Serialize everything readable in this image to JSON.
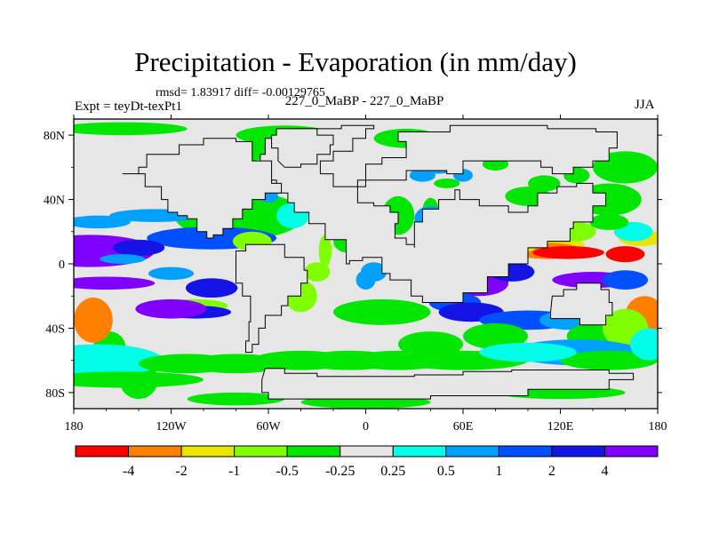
{
  "chart_data": {
    "type": "heatmap",
    "title": "Precipitation - Evaporation (in mm/day)",
    "subtitle": "rmsd= 1.83917 diff= -0.00129765",
    "left_label": "Expt = teyDt-texPt1",
    "center_label": "227_0_MaBP - 227_0_MaBP",
    "right_label": "JJA",
    "x_ticks": [
      "180",
      "120W",
      "60W",
      "0",
      "60E",
      "120E",
      "180"
    ],
    "x_tick_values": [
      -180,
      -120,
      -60,
      0,
      60,
      120,
      180
    ],
    "y_ticks": [
      "80N",
      "40N",
      "0",
      "40S",
      "80S"
    ],
    "y_tick_values": [
      80,
      40,
      0,
      -40,
      -80
    ],
    "xlim": [
      -180,
      180
    ],
    "ylim": [
      -90,
      90
    ],
    "colorbar": {
      "colors": [
        "#ff0000",
        "#ff8000",
        "#e6e600",
        "#80ff00",
        "#00e600",
        "#e6e6e6",
        "#00ffe6",
        "#00a0ff",
        "#0050ff",
        "#1414e6",
        "#8000ff"
      ],
      "labels": [
        "-4",
        "-2",
        "-1",
        "-0.5",
        "-0.25",
        "0.25",
        "0.5",
        "1",
        "2",
        "4"
      ],
      "level_values": [
        -4,
        -2,
        -1,
        -0.5,
        -0.25,
        0.25,
        0.5,
        1,
        2,
        4
      ]
    },
    "continents": [
      [
        [
          -12,
          0
        ],
        [
          -12,
          15
        ],
        [
          -25,
          25
        ],
        [
          -35,
          32
        ],
        [
          -44,
          38
        ],
        [
          -48,
          44
        ],
        [
          -55,
          52
        ],
        [
          -64,
          58
        ],
        [
          -65,
          68
        ],
        [
          -62,
          78
        ],
        [
          -45,
          84
        ],
        [
          -15,
          86
        ],
        [
          5,
          84
        ],
        [
          0,
          78
        ],
        [
          -8,
          70
        ],
        [
          -20,
          64
        ],
        [
          -28,
          56
        ],
        [
          -20,
          48
        ],
        [
          -5,
          52
        ],
        [
          25,
          58
        ],
        [
          50,
          56
        ],
        [
          60,
          64
        ],
        [
          90,
          64
        ],
        [
          108,
          60
        ],
        [
          115,
          56
        ],
        [
          128,
          60
        ],
        [
          140,
          64
        ],
        [
          150,
          72
        ],
        [
          155,
          82
        ],
        [
          142,
          84
        ],
        [
          112,
          86
        ],
        [
          80,
          86
        ],
        [
          52,
          82
        ],
        [
          20,
          76
        ],
        [
          25,
          66
        ],
        [
          10,
          62
        ],
        [
          0,
          48
        ],
        [
          -5,
          38
        ],
        [
          5,
          36
        ],
        [
          15,
          32
        ],
        [
          20,
          25
        ],
        [
          18,
          16
        ],
        [
          25,
          12
        ],
        [
          30,
          10
        ],
        [
          30,
          26
        ],
        [
          35,
          34
        ],
        [
          45,
          40
        ],
        [
          55,
          46
        ],
        [
          58,
          40
        ],
        [
          70,
          36
        ],
        [
          82,
          36
        ],
        [
          88,
          32
        ],
        [
          100,
          36
        ],
        [
          106,
          44
        ],
        [
          118,
          48
        ],
        [
          130,
          50
        ],
        [
          140,
          44
        ],
        [
          148,
          44
        ],
        [
          148,
          36
        ],
        [
          140,
          26
        ],
        [
          128,
          22
        ],
        [
          126,
          14
        ],
        [
          112,
          10
        ],
        [
          100,
          0
        ],
        [
          88,
          -8
        ],
        [
          75,
          -18
        ],
        [
          60,
          -24
        ],
        [
          45,
          -24
        ],
        [
          35,
          -20
        ],
        [
          28,
          -10
        ],
        [
          15,
          -6
        ],
        [
          10,
          4
        ],
        [
          -2,
          2
        ],
        [
          -10,
          0
        ]
      ],
      [
        [
          -150,
          56
        ],
        [
          -140,
          60
        ],
        [
          -135,
          68
        ],
        [
          -115,
          74
        ],
        [
          -100,
          78
        ],
        [
          -80,
          76
        ],
        [
          -70,
          64
        ],
        [
          -58,
          50
        ],
        [
          -52,
          44
        ],
        [
          -62,
          40
        ],
        [
          -70,
          34
        ],
        [
          -76,
          28
        ],
        [
          -82,
          22
        ],
        [
          -88,
          18
        ],
        [
          -94,
          16
        ],
        [
          -98,
          20
        ],
        [
          -104,
          28
        ],
        [
          -110,
          30
        ],
        [
          -116,
          32
        ],
        [
          -122,
          40
        ],
        [
          -126,
          48
        ],
        [
          -136,
          56
        ]
      ],
      [
        [
          -80,
          8
        ],
        [
          -74,
          12
        ],
        [
          -62,
          12
        ],
        [
          -50,
          4
        ],
        [
          -38,
          -4
        ],
        [
          -36,
          -12
        ],
        [
          -40,
          -20
        ],
        [
          -48,
          -26
        ],
        [
          -52,
          -32
        ],
        [
          -62,
          -40
        ],
        [
          -66,
          -50
        ],
        [
          -70,
          -55
        ],
        [
          -74,
          -48
        ],
        [
          -72,
          -36
        ],
        [
          -71,
          -20
        ],
        [
          -76,
          -12
        ],
        [
          -80,
          -4
        ]
      ],
      [
        [
          115,
          -20
        ],
        [
          122,
          -16
        ],
        [
          130,
          -12
        ],
        [
          138,
          -12
        ],
        [
          145,
          -16
        ],
        [
          150,
          -24
        ],
        [
          152,
          -32
        ],
        [
          148,
          -38
        ],
        [
          140,
          -38
        ],
        [
          132,
          -34
        ],
        [
          120,
          -34
        ],
        [
          114,
          -30
        ]
      ],
      [
        [
          -62,
          -65
        ],
        [
          -50,
          -68
        ],
        [
          -30,
          -70
        ],
        [
          0,
          -70
        ],
        [
          30,
          -69
        ],
        [
          60,
          -67
        ],
        [
          90,
          -66
        ],
        [
          120,
          -66
        ],
        [
          150,
          -68
        ],
        [
          165,
          -72
        ],
        [
          150,
          -78
        ],
        [
          100,
          -82
        ],
        [
          40,
          -84
        ],
        [
          -20,
          -84
        ],
        [
          -60,
          -80
        ],
        [
          -64,
          -72
        ]
      ],
      [
        [
          -50,
          60
        ],
        [
          -40,
          62
        ],
        [
          -30,
          68
        ],
        [
          -22,
          74
        ],
        [
          -20,
          80
        ],
        [
          -30,
          84
        ],
        [
          -45,
          84
        ],
        [
          -55,
          80
        ],
        [
          -58,
          72
        ],
        [
          -54,
          64
        ]
      ]
    ],
    "anomalies": [
      [
        -158,
        -52,
        -180,
        -24,
        -30,
        10,
        -0.3
      ],
      [
        -140,
        -72,
        -180,
        -15,
        -25,
        12,
        -0.3
      ],
      [
        -125,
        -35,
        -175,
        -12,
        -35,
        10,
        -0.25
      ],
      [
        -50,
        -25,
        -180,
        -5,
        20,
        6,
        -0.25
      ],
      [
        0,
        -50,
        -180,
        0,
        50,
        10,
        -0.25
      ],
      [
        -78,
        30,
        -180,
        -8,
        40,
        15,
        -0.3
      ],
      [
        -80,
        50,
        0,
        0,
        0,
        0,
        -0.22
      ],
      [
        -95,
        16,
        -180,
        -12,
        40,
        7,
        1.8
      ],
      [
        -170,
        8,
        -180,
        -6,
        40,
        10,
        6
      ],
      [
        -140,
        10,
        -180,
        -11,
        16,
        5,
        2.6
      ],
      [
        -150,
        3,
        -180,
        -11,
        14,
        3,
        0.8
      ],
      [
        -165,
        26,
        -180,
        -14,
        20,
        4,
        0.6
      ],
      [
        -130,
        30,
        -180,
        -16,
        28,
        4,
        0.6
      ],
      [
        -120,
        -6,
        -180,
        -12,
        14,
        4,
        0.7
      ],
      [
        -105,
        -26,
        -180,
        -10,
        20,
        4,
        -0.8
      ],
      [
        -105,
        -30,
        -180,
        -10,
        22,
        4,
        2.3
      ],
      [
        -160,
        -12,
        -180,
        -18,
        30,
        4,
        6
      ],
      [
        -120,
        -28,
        -180,
        -12,
        22,
        6,
        5
      ],
      [
        -95,
        -15,
        -180,
        -14,
        16,
        6,
        2.5
      ],
      [
        -168,
        -35,
        -180,
        -22,
        12,
        14,
        -3.6
      ],
      [
        -165,
        -60,
        -180,
        -18,
        40,
        10,
        0.4
      ],
      [
        -150,
        -72,
        -180,
        -25,
        50,
        5,
        -0.4
      ],
      [
        -70,
        14,
        -180,
        -14,
        12,
        6,
        -0.6
      ],
      [
        -60,
        -2,
        -180,
        -12,
        10,
        8,
        0.6
      ],
      [
        -25,
        8,
        -180,
        -18,
        4,
        10,
        -0.6
      ],
      [
        -30,
        -5,
        -180,
        -16,
        8,
        6,
        -0.7
      ],
      [
        -15,
        12,
        -180,
        -14,
        5,
        3,
        -1.0
      ],
      [
        -40,
        -20,
        -180,
        -14,
        10,
        10,
        -0.8
      ],
      [
        10,
        -30,
        -180,
        -20,
        30,
        8,
        -0.4
      ],
      [
        -45,
        30,
        -180,
        -15,
        10,
        8,
        0.3
      ],
      [
        -25,
        35,
        -180,
        -10,
        8,
        6,
        0.4
      ],
      [
        -72,
        70,
        -180,
        -10,
        14,
        6,
        -0.3
      ],
      [
        -100,
        58,
        -180,
        -14,
        12,
        6,
        -0.3
      ],
      [
        -45,
        65,
        -180,
        -10,
        10,
        6,
        -0.3
      ],
      [
        -60,
        42,
        -180,
        -6,
        6,
        4,
        0.6
      ],
      [
        20,
        30,
        -180,
        -10,
        10,
        12,
        -0.5
      ],
      [
        -12,
        15,
        -180,
        -10,
        8,
        8,
        -0.4
      ],
      [
        0,
        -10,
        -180,
        -6,
        6,
        6,
        0.5
      ],
      [
        5,
        -5,
        -180,
        -6,
        8,
        6,
        0.5
      ],
      [
        10,
        20,
        -180,
        -4,
        6,
        4,
        -0.5
      ],
      [
        40,
        33,
        -180,
        -10,
        5,
        8,
        -0.35
      ],
      [
        35,
        5,
        -180,
        -4,
        14,
        6,
        -0.35
      ],
      [
        60,
        15,
        -180,
        -4,
        20,
        6,
        -0.3
      ],
      [
        -50,
        80,
        -180,
        -8,
        30,
        6,
        -0.35
      ],
      [
        25,
        78,
        -180,
        -8,
        20,
        6,
        -0.3
      ],
      [
        60,
        30,
        -180,
        -14,
        20,
        6,
        0.4
      ],
      [
        50,
        50,
        -180,
        -6,
        8,
        3,
        -0.3
      ],
      [
        35,
        55,
        -180,
        -8,
        8,
        4,
        0.6
      ],
      [
        45,
        60,
        -180,
        -12,
        10,
        4,
        0.8
      ],
      [
        60,
        55,
        -180,
        -10,
        6,
        4,
        0.5
      ],
      [
        80,
        62,
        -180,
        -10,
        8,
        4,
        -0.35
      ],
      [
        75,
        70,
        -180,
        -10,
        10,
        4,
        -0.3
      ],
      [
        110,
        73,
        -180,
        -12,
        8,
        5,
        0.4
      ],
      [
        110,
        78,
        -180,
        -10,
        20,
        4,
        -0.3
      ],
      [
        130,
        55,
        -180,
        -10,
        8,
        5,
        -0.3
      ],
      [
        110,
        50,
        -180,
        -10,
        10,
        5,
        -0.35
      ],
      [
        160,
        60,
        -180,
        -14,
        20,
        10,
        -0.3
      ],
      [
        150,
        40,
        -180,
        -14,
        20,
        10,
        -0.35
      ],
      [
        100,
        42,
        -180,
        -10,
        14,
        6,
        -0.35
      ],
      [
        55,
        32,
        -180,
        -14,
        10,
        6,
        3.5
      ],
      [
        78,
        26,
        -180,
        -12,
        10,
        6,
        6
      ],
      [
        100,
        26,
        -180,
        -12,
        14,
        5,
        2.2
      ],
      [
        40,
        28,
        -180,
        -12,
        10,
        8,
        0.7
      ],
      [
        120,
        30,
        -180,
        -12,
        12,
        6,
        -0.6
      ],
      [
        100,
        12,
        -180,
        -12,
        35,
        5,
        -1.2
      ],
      [
        112,
        8,
        -180,
        -16,
        22,
        5,
        -2.4
      ],
      [
        125,
        7,
        -180,
        -14,
        22,
        4,
        -4.2
      ],
      [
        160,
        6,
        -180,
        -16,
        12,
        5,
        -4.2
      ],
      [
        170,
        16,
        -180,
        -12,
        14,
        5,
        -1.3
      ],
      [
        165,
        20,
        -180,
        -10,
        12,
        6,
        0.4
      ],
      [
        130,
        20,
        -180,
        -10,
        12,
        6,
        -0.8
      ],
      [
        150,
        26,
        -180,
        -12,
        12,
        5,
        -0.5
      ],
      [
        80,
        10,
        -180,
        -12,
        25,
        4,
        -1.5
      ],
      [
        65,
        14,
        -180,
        -8,
        14,
        4,
        -0.6
      ],
      [
        140,
        -10,
        -180,
        -14,
        25,
        5,
        6
      ],
      [
        160,
        -10,
        -180,
        -16,
        14,
        6,
        1.5
      ],
      [
        70,
        -12,
        -180,
        -12,
        18,
        8,
        6
      ],
      [
        50,
        -18,
        -180,
        -14,
        12,
        10,
        3.5
      ],
      [
        55,
        -24,
        -180,
        -10,
        16,
        6,
        1.2
      ],
      [
        65,
        -30,
        -180,
        -8,
        20,
        6,
        2.2
      ],
      [
        100,
        -35,
        -180,
        -10,
        30,
        6,
        1.5
      ],
      [
        125,
        -35,
        -180,
        -12,
        18,
        6,
        0.8
      ],
      [
        90,
        -5,
        -180,
        -10,
        14,
        6,
        3
      ],
      [
        140,
        -45,
        -180,
        -15,
        16,
        8,
        -0.35
      ],
      [
        172,
        -32,
        -180,
        -16,
        12,
        12,
        -2.6
      ],
      [
        160,
        -40,
        -180,
        -16,
        14,
        12,
        -0.8
      ],
      [
        130,
        -55,
        -180,
        -18,
        40,
        8,
        0.5
      ],
      [
        150,
        -60,
        -180,
        -16,
        30,
        6,
        -0.4
      ],
      [
        175,
        -50,
        -180,
        -16,
        12,
        10,
        0.4
      ],
      [
        80,
        -45,
        -180,
        -18,
        20,
        8,
        -0.35
      ],
      [
        40,
        -50,
        -180,
        -18,
        20,
        8,
        -0.35
      ],
      [
        60,
        -60,
        -180,
        -16,
        40,
        6,
        -0.4
      ],
      [
        20,
        -60,
        -180,
        -16,
        30,
        6,
        -0.4
      ],
      [
        -10,
        -60,
        -180,
        -14,
        30,
        6,
        -0.45
      ],
      [
        -40,
        -60,
        -180,
        -16,
        30,
        6,
        -0.4
      ],
      [
        -80,
        -62,
        -180,
        -14,
        30,
        6,
        -0.4
      ],
      [
        -110,
        -62,
        -180,
        -14,
        30,
        6,
        -0.4
      ],
      [
        100,
        -55,
        -180,
        -16,
        30,
        6,
        0.4
      ],
      [
        -80,
        -84,
        -180,
        -10,
        30,
        4,
        -0.3
      ],
      [
        0,
        -86,
        -180,
        -10,
        40,
        4,
        -0.3
      ],
      [
        120,
        -80,
        -180,
        -10,
        40,
        4,
        -0.3
      ],
      [
        -150,
        84,
        -180,
        -8,
        40,
        4,
        -0.4
      ]
    ]
  }
}
